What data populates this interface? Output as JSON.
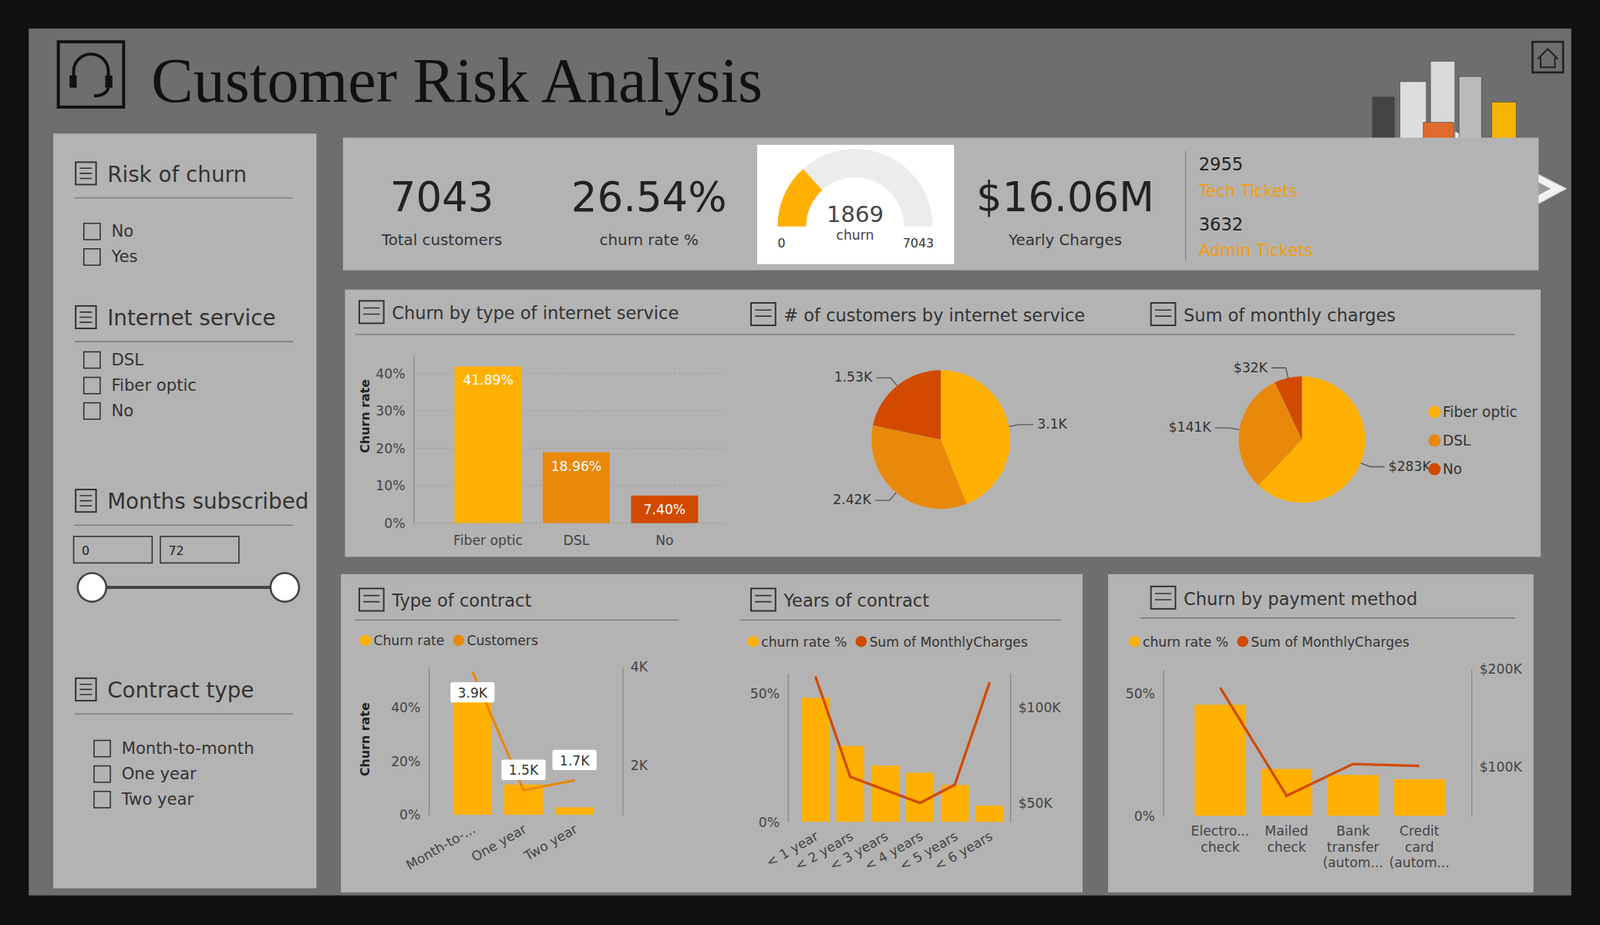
{
  "header": {
    "title": "Customer Risk Analysis"
  },
  "filters": [
    {
      "title": "Risk of churn",
      "options": [
        "No",
        "Yes"
      ]
    },
    {
      "title": "Internet service",
      "options": [
        "DSL",
        "Fiber optic",
        "No"
      ]
    },
    {
      "title": "Months subscribed",
      "range": [
        0,
        72
      ]
    },
    {
      "title": "Contract type",
      "options": [
        "Month-to-month",
        "One year",
        "Two year"
      ]
    }
  ],
  "kpis": [
    {
      "value": 7043,
      "label": "Total customers"
    },
    {
      "value": 26.54,
      "value_label": "26.54%",
      "label": "churn rate %"
    }
  ],
  "gauge": {
    "value": 1869,
    "label": "churn",
    "min": 0,
    "max": 7043
  },
  "charges": {
    "value": 16060000,
    "value_label": "$16.06M",
    "label": "Yearly Charges"
  },
  "tickets": [
    {
      "value": 2955,
      "label": "Tech Tickets"
    },
    {
      "value": 3632,
      "label": "Admin Tickets"
    }
  ],
  "chart_data": [
    {
      "type": "bar",
      "title": "Churn by type of internet service",
      "ylabel": "Churn rate",
      "categories": [
        "Fiber optic",
        "DSL",
        "No"
      ],
      "values": [
        41.89,
        18.96,
        7.4
      ],
      "value_labels": [
        "41.89%",
        "18.96%",
        "7.40%"
      ],
      "colors": [
        "#FFB000",
        "#E8890B",
        "#D14A00"
      ],
      "ylim": [
        0,
        45
      ],
      "yticks": [
        {
          "value": 0,
          "label": "0%"
        },
        {
          "value": 10,
          "label": "10%"
        },
        {
          "value": 20,
          "label": "20%"
        },
        {
          "value": 30,
          "label": "30%"
        },
        {
          "value": 40,
          "label": "40%"
        }
      ],
      "grid": true,
      "data_labels": true
    },
    {
      "type": "pie",
      "title": "# of customers by internet service",
      "values": [
        3100,
        2420,
        1530
      ],
      "value_labels": [
        "3.1K",
        "2.42K",
        "1.53K"
      ],
      "colors": [
        "#FFB000",
        "#E8890B",
        "#D14A00"
      ],
      "data_labels": true
    },
    {
      "type": "pie",
      "title": "Sum of monthly charges",
      "categories": [
        "Fiber optic",
        "DSL",
        "No"
      ],
      "values": [
        283000,
        141000,
        32000
      ],
      "value_labels": [
        "$283K",
        "$141K",
        "$32K"
      ],
      "colors": [
        "#FFB000",
        "#E8890B",
        "#D14A00"
      ],
      "legend": "right",
      "data_labels": true
    },
    {
      "type": "bar",
      "title": "Type of contract",
      "ylabel": "Churn rate",
      "categories": [
        "Month-to-...",
        "One year",
        "Two year"
      ],
      "series": [
        {
          "name": "Churn rate",
          "type": "bar",
          "color": "#FFB000",
          "values": [
            42.7,
            11.3,
            2.8
          ]
        },
        {
          "name": "Customers",
          "type": "line",
          "axis": "y2",
          "color": "#E8890B",
          "values": [
            3900,
            1500,
            1700
          ],
          "value_labels": [
            "3.9K",
            "1.5K",
            "1.7K"
          ],
          "data_labels": true
        }
      ],
      "ylim": [
        0,
        55
      ],
      "yticks": [
        {
          "value": 0,
          "label": "0%"
        },
        {
          "value": 20,
          "label": "20%"
        },
        {
          "value": 40,
          "label": "40%"
        }
      ],
      "y2lim": [
        1000,
        4000
      ],
      "y2ticks": [
        {
          "value": 2000,
          "label": "2K"
        },
        {
          "value": 4000,
          "label": "4K"
        }
      ],
      "legend": "top"
    },
    {
      "type": "bar",
      "title": "Years of contract",
      "categories": [
        "< 1 year",
        "< 2 years",
        "< 3 years",
        "< 4 years",
        "< 5 years",
        "< 6 years"
      ],
      "series": [
        {
          "name": "churn rate %",
          "type": "bar",
          "color": "#FFB000",
          "values": [
            48.4,
            29.6,
            22,
            19.2,
            14.4,
            6.4
          ]
        },
        {
          "name": "Sum of MonthlyCharges",
          "type": "line",
          "axis": "y2",
          "color": "#D14A00",
          "values": [
            116300,
            63700,
            56800,
            50000,
            59500,
            113200
          ]
        }
      ],
      "ylim": [
        0,
        58
      ],
      "yticks": [
        {
          "value": 0,
          "label": "0%"
        },
        {
          "value": 50,
          "label": "50%"
        }
      ],
      "y2lim": [
        40000,
        118000
      ],
      "y2ticks": [
        {
          "value": 50000,
          "label": "$50K"
        },
        {
          "value": 100000,
          "label": "$100K"
        }
      ],
      "legend": "top"
    },
    {
      "type": "bar",
      "title": "Churn by payment method",
      "categories": [
        "Electro... check",
        "Mailed check",
        "Bank transfer (autom...",
        "Credit card (autom..."
      ],
      "series": [
        {
          "name": "churn rate %",
          "type": "bar",
          "color": "#FFB000",
          "values": [
            45.4,
            19.2,
            16.7,
            15
          ]
        },
        {
          "name": "Sum of MonthlyCharges",
          "type": "line",
          "axis": "y2",
          "color": "#D14A00",
          "values": [
            181000,
            70500,
            103000,
            101000
          ]
        }
      ],
      "ylim": [
        0,
        60
      ],
      "yticks": [
        {
          "value": 0,
          "label": "0%"
        },
        {
          "value": 50,
          "label": "50%"
        }
      ],
      "y2lim": [
        50000,
        200000
      ],
      "y2ticks": [
        {
          "value": 100000,
          "label": "$100K"
        },
        {
          "value": 200000,
          "label": "$200K"
        }
      ],
      "legend": "top"
    }
  ]
}
